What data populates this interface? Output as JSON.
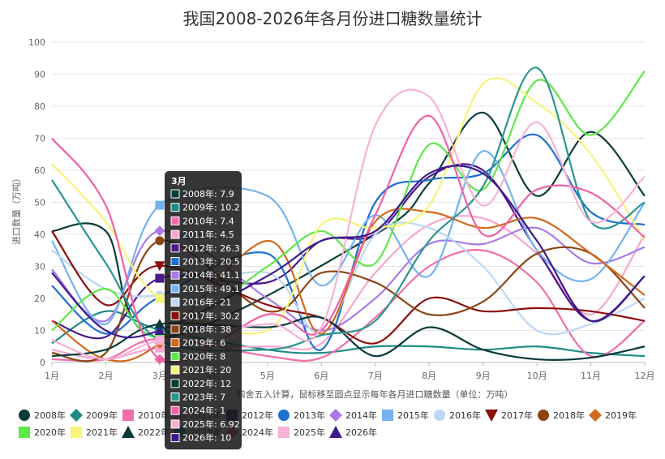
{
  "chart_data": {
    "type": "line",
    "title": "我国2008-2026年各月份进口糖数量统计",
    "ylabel": "进口数量（万吨）",
    "xlabel": "",
    "note": "四舍五入计算，鼠标移至圆点显示每年各月进口糖数量（单位：万吨）",
    "categories": [
      "1月",
      "2月",
      "3月",
      "4月",
      "5月",
      "6月",
      "7月",
      "8月",
      "9月",
      "10月",
      "11月",
      "12月"
    ],
    "ylim": [
      0,
      100
    ],
    "yticks": [
      "0",
      "10",
      "20",
      "30",
      "40",
      "50",
      "60",
      "70",
      "80",
      "90",
      "100"
    ],
    "grid": true,
    "legend_position": "bottom",
    "series": [
      {
        "name": "2008年",
        "color": "#0b3c3a",
        "marker": "circle",
        "values": [
          41,
          41,
          7.9,
          null,
          null,
          null,
          40,
          56,
          78,
          52,
          72,
          52
        ]
      },
      {
        "name": "2009年",
        "color": "#1f8a86",
        "marker": "diamond",
        "values": [
          6,
          16,
          10.2,
          null,
          4,
          3,
          5,
          5,
          4,
          5,
          3,
          2
        ]
      },
      {
        "name": "2010年",
        "color": "#f06ea9",
        "marker": "square",
        "values": [
          1,
          1,
          7.4,
          null,
          2,
          1.5,
          14,
          30,
          35,
          25,
          2,
          13
        ]
      },
      {
        "name": "2011年",
        "color": "#f6a6cf",
        "marker": "square",
        "values": [
          4,
          1,
          4.5,
          null,
          5,
          6,
          28,
          43,
          45,
          34,
          15,
          40
        ]
      },
      {
        "name": "2012年",
        "color": "#4b1a8c",
        "marker": "square",
        "values": [
          13,
          8,
          26.3,
          null,
          25,
          38,
          40,
          58,
          60,
          35,
          13,
          27
        ]
      },
      {
        "name": "2013年",
        "color": "#1f6fce",
        "marker": "circle",
        "values": [
          24,
          9,
          20.5,
          null,
          34,
          4,
          50,
          57,
          59,
          71,
          47,
          43
        ]
      },
      {
        "name": "2014年",
        "color": "#a97ae8",
        "marker": "diamond",
        "values": [
          29,
          13,
          41.1,
          null,
          20,
          10,
          20,
          37,
          37,
          42,
          31,
          36
        ]
      },
      {
        "name": "2015年",
        "color": "#74b3f0",
        "marker": "square",
        "values": [
          38,
          12,
          49.1,
          null,
          52,
          24,
          46,
          27,
          66,
          35,
          26,
          50
        ]
      },
      {
        "name": "2016年",
        "color": "#bcd8f5",
        "marker": "circle",
        "values": [
          35,
          23,
          21,
          null,
          28,
          9,
          40,
          42,
          30,
          10,
          12,
          20
        ]
      },
      {
        "name": "2017年",
        "color": "#8b0f0f",
        "marker": "triangle-down",
        "values": [
          41,
          18,
          30.2,
          null,
          18,
          14,
          6,
          20,
          16,
          17,
          16,
          13
        ]
      },
      {
        "name": "2018年",
        "color": "#8b4513",
        "marker": "circle",
        "values": [
          3,
          3,
          38,
          null,
          16,
          28,
          25,
          15,
          19,
          34,
          34,
          17
        ]
      },
      {
        "name": "2019年",
        "color": "#d2691e",
        "marker": "diamond",
        "values": [
          13,
          1,
          6,
          null,
          38,
          9,
          44,
          47,
          42,
          45,
          34,
          21
        ]
      },
      {
        "name": "2020年",
        "color": "#5ee84a",
        "marker": "square",
        "values": [
          10,
          23,
          8,
          null,
          30,
          41,
          31,
          68,
          54,
          88,
          71,
          91
        ]
      },
      {
        "name": "2021年",
        "color": "#f7f47a",
        "marker": "square",
        "values": [
          62,
          44,
          20,
          null,
          10,
          43,
          42,
          49,
          87,
          81,
          65,
          38
        ]
      },
      {
        "name": "2022年",
        "color": "#083a3a",
        "marker": "triangle",
        "values": [
          2,
          4,
          12,
          null,
          11,
          14,
          2,
          11,
          4,
          1,
          1.5,
          5
        ]
      },
      {
        "name": "2023年",
        "color": "#2a9690",
        "marker": "circle",
        "values": [
          57,
          31,
          7,
          null,
          4,
          8.5,
          13,
          38,
          55,
          92,
          44,
          50
        ]
      },
      {
        "name": "2024年",
        "color": "#f060a8",
        "marker": "diamond",
        "values": [
          70,
          49,
          1,
          null,
          15,
          10,
          46,
          77,
          40,
          54,
          53,
          39
        ]
      },
      {
        "name": "2025年",
        "color": "#f7b2d8",
        "marker": "square",
        "values": [
          7,
          1,
          6.92,
          null,
          12,
          11,
          74,
          83,
          49,
          75,
          44,
          58
        ]
      },
      {
        "name": "2026年",
        "color": "#3d1a8c",
        "marker": "triangle",
        "values": [
          28,
          10,
          10,
          null,
          27,
          38,
          41,
          59,
          59,
          38,
          13,
          27
        ]
      }
    ],
    "tooltip": {
      "header": "3月",
      "rows": [
        "2008年: 7.9",
        "2009年: 10.2",
        "2010年: 7.4",
        "2011年: 4.5",
        "2012年: 26.3",
        "2013年: 20.5",
        "2014年: 41.1",
        "2015年: 49.1",
        "2016年: 21",
        "2017年: 30.2",
        "2018年: 38",
        "2019年: 6",
        "2020年: 8",
        "2021年: 20",
        "2022年: 12",
        "2023年: 7",
        "2024年: 1",
        "2025年: 6.92",
        "2026年: 10"
      ]
    }
  }
}
